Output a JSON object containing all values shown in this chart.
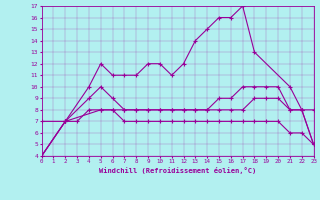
{
  "xlabel": "Windchill (Refroidissement éolien,°C)",
  "bg_color": "#b2f0f0",
  "line_color": "#990099",
  "xlim": [
    0,
    23
  ],
  "ylim": [
    4,
    17
  ],
  "xticks": [
    0,
    1,
    2,
    3,
    4,
    5,
    6,
    7,
    8,
    9,
    10,
    11,
    12,
    13,
    14,
    15,
    16,
    17,
    18,
    19,
    20,
    21,
    22,
    23
  ],
  "yticks": [
    4,
    5,
    6,
    7,
    8,
    9,
    10,
    11,
    12,
    13,
    14,
    15,
    16,
    17
  ],
  "lines": [
    {
      "x": [
        0,
        2,
        4,
        5,
        6,
        7,
        8,
        9,
        10,
        11,
        12,
        13,
        14,
        15,
        16,
        17,
        18,
        21,
        22,
        23
      ],
      "y": [
        4,
        7,
        10,
        12,
        11,
        11,
        11,
        12,
        12,
        11,
        12,
        14,
        15,
        16,
        16,
        17,
        13,
        10,
        8,
        5
      ]
    },
    {
      "x": [
        0,
        2,
        4,
        5,
        6,
        7,
        8,
        9,
        10,
        11,
        12,
        13,
        14,
        15,
        16,
        17,
        18,
        19,
        20,
        21,
        22,
        23
      ],
      "y": [
        4,
        7,
        9,
        10,
        9,
        8,
        8,
        8,
        8,
        8,
        8,
        8,
        8,
        9,
        9,
        10,
        10,
        10,
        10,
        8,
        8,
        5
      ]
    },
    {
      "x": [
        0,
        2,
        5,
        6,
        7,
        8,
        9,
        10,
        11,
        12,
        13,
        14,
        15,
        16,
        17,
        18,
        19,
        20,
        21,
        22,
        23
      ],
      "y": [
        7,
        7,
        8,
        8,
        8,
        8,
        8,
        8,
        8,
        8,
        8,
        8,
        8,
        8,
        8,
        9,
        9,
        9,
        8,
        8,
        8
      ]
    },
    {
      "x": [
        0,
        2,
        3,
        4,
        5,
        6,
        7,
        8,
        9,
        10,
        11,
        12,
        13,
        14,
        15,
        16,
        17,
        18,
        19,
        20,
        21,
        22,
        23
      ],
      "y": [
        4,
        7,
        7,
        8,
        8,
        8,
        7,
        7,
        7,
        7,
        7,
        7,
        7,
        7,
        7,
        7,
        7,
        7,
        7,
        7,
        6,
        6,
        5
      ]
    }
  ]
}
